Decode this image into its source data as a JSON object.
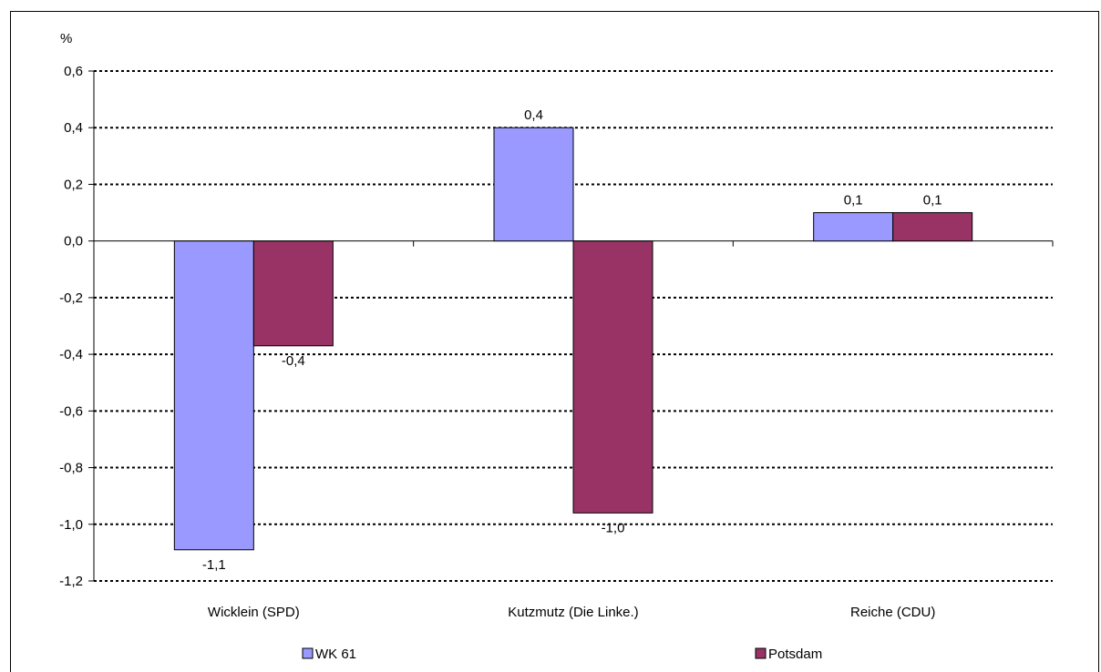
{
  "chart_data": {
    "type": "bar",
    "ylabel": "%",
    "categories": [
      "Wicklein (SPD)",
      "Kutzmutz (Die Linke.)",
      "Reiche (CDU)"
    ],
    "series": [
      {
        "name": "WK 61",
        "color": "#9999ff",
        "values": [
          -1.09,
          0.4,
          0.1
        ],
        "labels": [
          "-1,1",
          "0,4",
          "0,1"
        ]
      },
      {
        "name": "Potsdam",
        "color": "#993366",
        "values": [
          -0.37,
          -0.96,
          0.1
        ],
        "labels": [
          "-0,4",
          "-1,0",
          "0,1"
        ]
      }
    ],
    "ylim": [
      -1.2,
      0.6
    ],
    "yticks": [
      0.6,
      0.4,
      0.2,
      0.0,
      -0.2,
      -0.4,
      -0.6,
      -0.8,
      -1.0,
      -1.2
    ],
    "ytick_labels": [
      "0,6",
      "0,4",
      "0,2",
      "0,0",
      "-0,2",
      "-0,4",
      "-0,6",
      "-0,8",
      "-1,0",
      "-1,2"
    ],
    "grid": true,
    "legend_position": "bottom"
  }
}
